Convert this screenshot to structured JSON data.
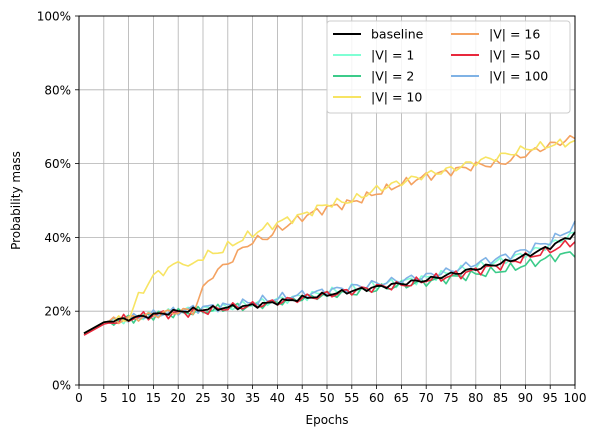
{
  "chart_data": {
    "type": "line",
    "xlabel": "Epochs",
    "ylabel": "Probability mass",
    "xlim": [
      0,
      100
    ],
    "ylim": [
      0,
      100
    ],
    "xticks": [
      0,
      5,
      10,
      15,
      20,
      25,
      30,
      35,
      40,
      45,
      50,
      55,
      60,
      65,
      70,
      75,
      80,
      85,
      90,
      95,
      100
    ],
    "yticks": [
      0,
      20,
      40,
      60,
      80,
      100
    ],
    "ytick_labels": [
      "0%",
      "20%",
      "40%",
      "60%",
      "80%",
      "100%"
    ],
    "grid": true,
    "legend_position": "top-right",
    "legend_columns": 2,
    "series": [
      {
        "name": "baseline",
        "color": "#000000",
        "anchors": [
          [
            1,
            14
          ],
          [
            5,
            17
          ],
          [
            10,
            18
          ],
          [
            15,
            19
          ],
          [
            20,
            20
          ],
          [
            25,
            20.5
          ],
          [
            30,
            21
          ],
          [
            35,
            21.5
          ],
          [
            40,
            22.5
          ],
          [
            45,
            23.5
          ],
          [
            50,
            24.5
          ],
          [
            55,
            25.5
          ],
          [
            60,
            26.5
          ],
          [
            65,
            27.5
          ],
          [
            70,
            28.5
          ],
          [
            75,
            30
          ],
          [
            80,
            31.5
          ],
          [
            85,
            33
          ],
          [
            90,
            35
          ],
          [
            95,
            37.5
          ],
          [
            100,
            41
          ]
        ]
      },
      {
        "name": "|V| = 1",
        "color": "#7FFFD4",
        "anchors": [
          [
            1,
            14
          ],
          [
            5,
            17
          ],
          [
            10,
            18
          ],
          [
            15,
            19
          ],
          [
            20,
            20
          ],
          [
            25,
            20.5
          ],
          [
            30,
            21
          ],
          [
            35,
            22
          ],
          [
            40,
            23
          ],
          [
            45,
            24
          ],
          [
            50,
            25
          ],
          [
            55,
            26
          ],
          [
            60,
            27
          ],
          [
            65,
            28
          ],
          [
            70,
            29
          ],
          [
            75,
            30.5
          ],
          [
            80,
            32
          ],
          [
            85,
            33.5
          ],
          [
            90,
            35.5
          ],
          [
            95,
            38
          ],
          [
            100,
            41
          ]
        ]
      },
      {
        "name": "|V| = 2",
        "color": "#3CCB8A",
        "anchors": [
          [
            1,
            14
          ],
          [
            5,
            17
          ],
          [
            10,
            18
          ],
          [
            15,
            19
          ],
          [
            20,
            19.5
          ],
          [
            25,
            20
          ],
          [
            30,
            21
          ],
          [
            35,
            21.5
          ],
          [
            40,
            22.5
          ],
          [
            45,
            23.5
          ],
          [
            50,
            24.5
          ],
          [
            55,
            25
          ],
          [
            60,
            26
          ],
          [
            65,
            27
          ],
          [
            70,
            28
          ],
          [
            75,
            29
          ],
          [
            80,
            30
          ],
          [
            85,
            31
          ],
          [
            90,
            32.5
          ],
          [
            95,
            34.5
          ],
          [
            100,
            36
          ]
        ]
      },
      {
        "name": "|V| = 10",
        "color": "#F7E463",
        "anchors": [
          [
            1,
            14
          ],
          [
            5,
            17
          ],
          [
            10,
            18
          ],
          [
            12,
            24
          ],
          [
            15,
            29.5
          ],
          [
            20,
            33
          ],
          [
            21,
            34
          ],
          [
            22,
            31.5
          ],
          [
            25,
            35
          ],
          [
            28,
            36
          ],
          [
            30,
            37.5
          ],
          [
            35,
            41
          ],
          [
            40,
            44
          ],
          [
            45,
            46
          ],
          [
            50,
            49
          ],
          [
            55,
            50
          ],
          [
            60,
            53
          ],
          [
            65,
            55
          ],
          [
            70,
            57
          ],
          [
            75,
            58.5
          ],
          [
            80,
            60.5
          ],
          [
            85,
            62
          ],
          [
            90,
            64
          ],
          [
            95,
            65
          ],
          [
            100,
            66
          ]
        ]
      },
      {
        "name": "|V| = 16",
        "color": "#F4A261",
        "anchors": [
          [
            1,
            14
          ],
          [
            5,
            17
          ],
          [
            10,
            18
          ],
          [
            15,
            19
          ],
          [
            20,
            20
          ],
          [
            23,
            20
          ],
          [
            25,
            26
          ],
          [
            27,
            30
          ],
          [
            30,
            33
          ],
          [
            33,
            37
          ],
          [
            35,
            39
          ],
          [
            38,
            40
          ],
          [
            40,
            42
          ],
          [
            45,
            45.5
          ],
          [
            50,
            48
          ],
          [
            55,
            49.5
          ],
          [
            60,
            52
          ],
          [
            65,
            54.5
          ],
          [
            70,
            56.5
          ],
          [
            75,
            58
          ],
          [
            80,
            59.5
          ],
          [
            85,
            60
          ],
          [
            90,
            62.5
          ],
          [
            95,
            65
          ],
          [
            100,
            67
          ]
        ]
      },
      {
        "name": "|V| = 50",
        "color": "#E8283C",
        "anchors": [
          [
            1,
            13.5
          ],
          [
            5,
            16.5
          ],
          [
            10,
            18
          ],
          [
            15,
            19
          ],
          [
            20,
            19.5
          ],
          [
            25,
            20
          ],
          [
            30,
            21
          ],
          [
            35,
            21.5
          ],
          [
            40,
            22.5
          ],
          [
            45,
            23.5
          ],
          [
            50,
            24.5
          ],
          [
            55,
            25.5
          ],
          [
            60,
            26.5
          ],
          [
            65,
            27
          ],
          [
            70,
            28.5
          ],
          [
            75,
            29.5
          ],
          [
            80,
            31
          ],
          [
            85,
            32.5
          ],
          [
            90,
            34.5
          ],
          [
            95,
            36.5
          ],
          [
            100,
            39
          ]
        ]
      },
      {
        "name": "|V| = 100",
        "color": "#7FB2E5",
        "anchors": [
          [
            1,
            14
          ],
          [
            5,
            17
          ],
          [
            10,
            18
          ],
          [
            15,
            19
          ],
          [
            20,
            20
          ],
          [
            25,
            21
          ],
          [
            30,
            21.5
          ],
          [
            35,
            22.5
          ],
          [
            40,
            23.5
          ],
          [
            45,
            24.5
          ],
          [
            50,
            25.5
          ],
          [
            55,
            26.5
          ],
          [
            60,
            27.5
          ],
          [
            65,
            28.5
          ],
          [
            70,
            29.5
          ],
          [
            75,
            31
          ],
          [
            80,
            33
          ],
          [
            85,
            34.5
          ],
          [
            90,
            36.5
          ],
          [
            95,
            39
          ],
          [
            100,
            43
          ]
        ]
      }
    ]
  }
}
